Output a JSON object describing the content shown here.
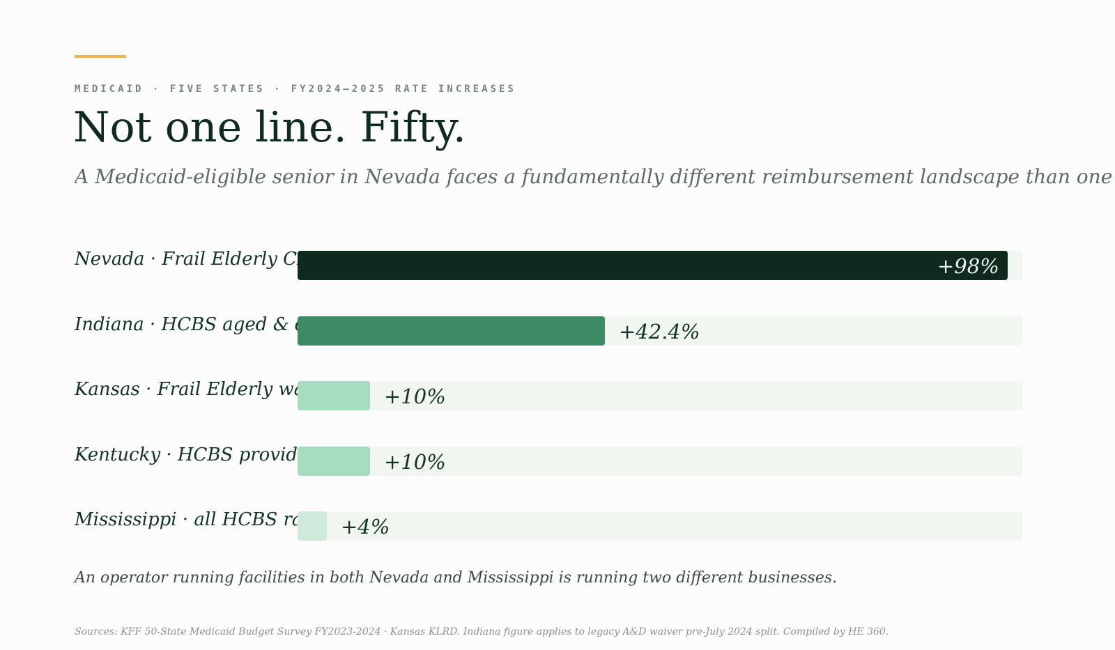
{
  "header": {
    "eyebrow": "MEDICAID · FIVE STATES · FY2024–2025 RATE INCREASES",
    "title": "Not one line. Fifty.",
    "subtitle": "A Medicaid-eligible senior in Nevada faces a fundamentally different reimbursement landscape than one"
  },
  "colors": {
    "accent": "#f0b44c",
    "track": "#f1f6f1"
  },
  "chart_data": {
    "type": "bar",
    "orientation": "horizontal",
    "xlim": [
      0,
      100
    ],
    "categories": [
      "Nevada · Frail Elderly CHE waiver",
      "Indiana · HCBS aged & disabled",
      "Kansas · Frail Elderly waiver",
      "Kentucky · HCBS providers",
      "Mississippi · all HCBS rates"
    ],
    "values": [
      98,
      42.4,
      10,
      10,
      4
    ],
    "value_labels": [
      "+98%",
      "+42.4%",
      "+10%",
      "+10%",
      "+4%"
    ],
    "bar_colors": [
      "#10291f",
      "#3e8a64",
      "#a6dcc0",
      "#a6dcc0",
      "#cfeadb"
    ]
  },
  "footer": {
    "note": "An operator running facilities in both Nevada and Mississippi is running two different businesses.",
    "sources": "Sources: KFF 50-State Medicaid Budget Survey FY2023-2024 · Kansas KLRD. Indiana figure applies to legacy A&D waiver pre-July 2024 split. Compiled by HE 360."
  }
}
